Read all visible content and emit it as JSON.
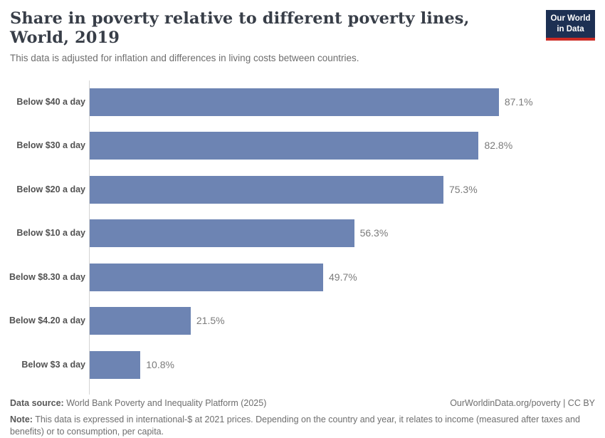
{
  "header": {
    "title": "Share in poverty relative to different poverty lines, World, 2019",
    "subtitle": "This data is adjusted for inflation and differences in living costs between countries.",
    "logo": {
      "line1": "Our World",
      "line2": "in Data"
    }
  },
  "chart_data": {
    "type": "bar",
    "orientation": "horizontal",
    "title": "Share in poverty relative to different poverty lines, World, 2019",
    "categories": [
      "Below $40 a day",
      "Below $30 a day",
      "Below $20 a day",
      "Below $10 a day",
      "Below $8.30 a day",
      "Below $4.20 a day",
      "Below $3 a day"
    ],
    "values": [
      87.1,
      82.8,
      75.3,
      56.3,
      49.7,
      21.5,
      10.8
    ],
    "value_labels": [
      "87.1%",
      "82.8%",
      "75.3%",
      "56.3%",
      "49.7%",
      "21.5%",
      "10.8%"
    ],
    "unit": "%",
    "xlim": [
      0,
      100
    ],
    "grid": false,
    "legend": false,
    "xlabel": "",
    "ylabel": ""
  },
  "colors": {
    "bar": "#6d84b3",
    "axis_line": "#d4d4d4",
    "logo_bg": "#1d3053",
    "logo_red": "#cc2a24"
  },
  "footer": {
    "source_label": "Data source:",
    "source_text": " World Bank Poverty and Inequality Platform (2025)",
    "link_text": "OurWorldinData.org/poverty | CC BY",
    "note_label": "Note:",
    "note_text": " This data is expressed in international-$ at 2021 prices. Depending on the country and year, it relates to income (measured after taxes and benefits) or to consumption, per capita."
  }
}
